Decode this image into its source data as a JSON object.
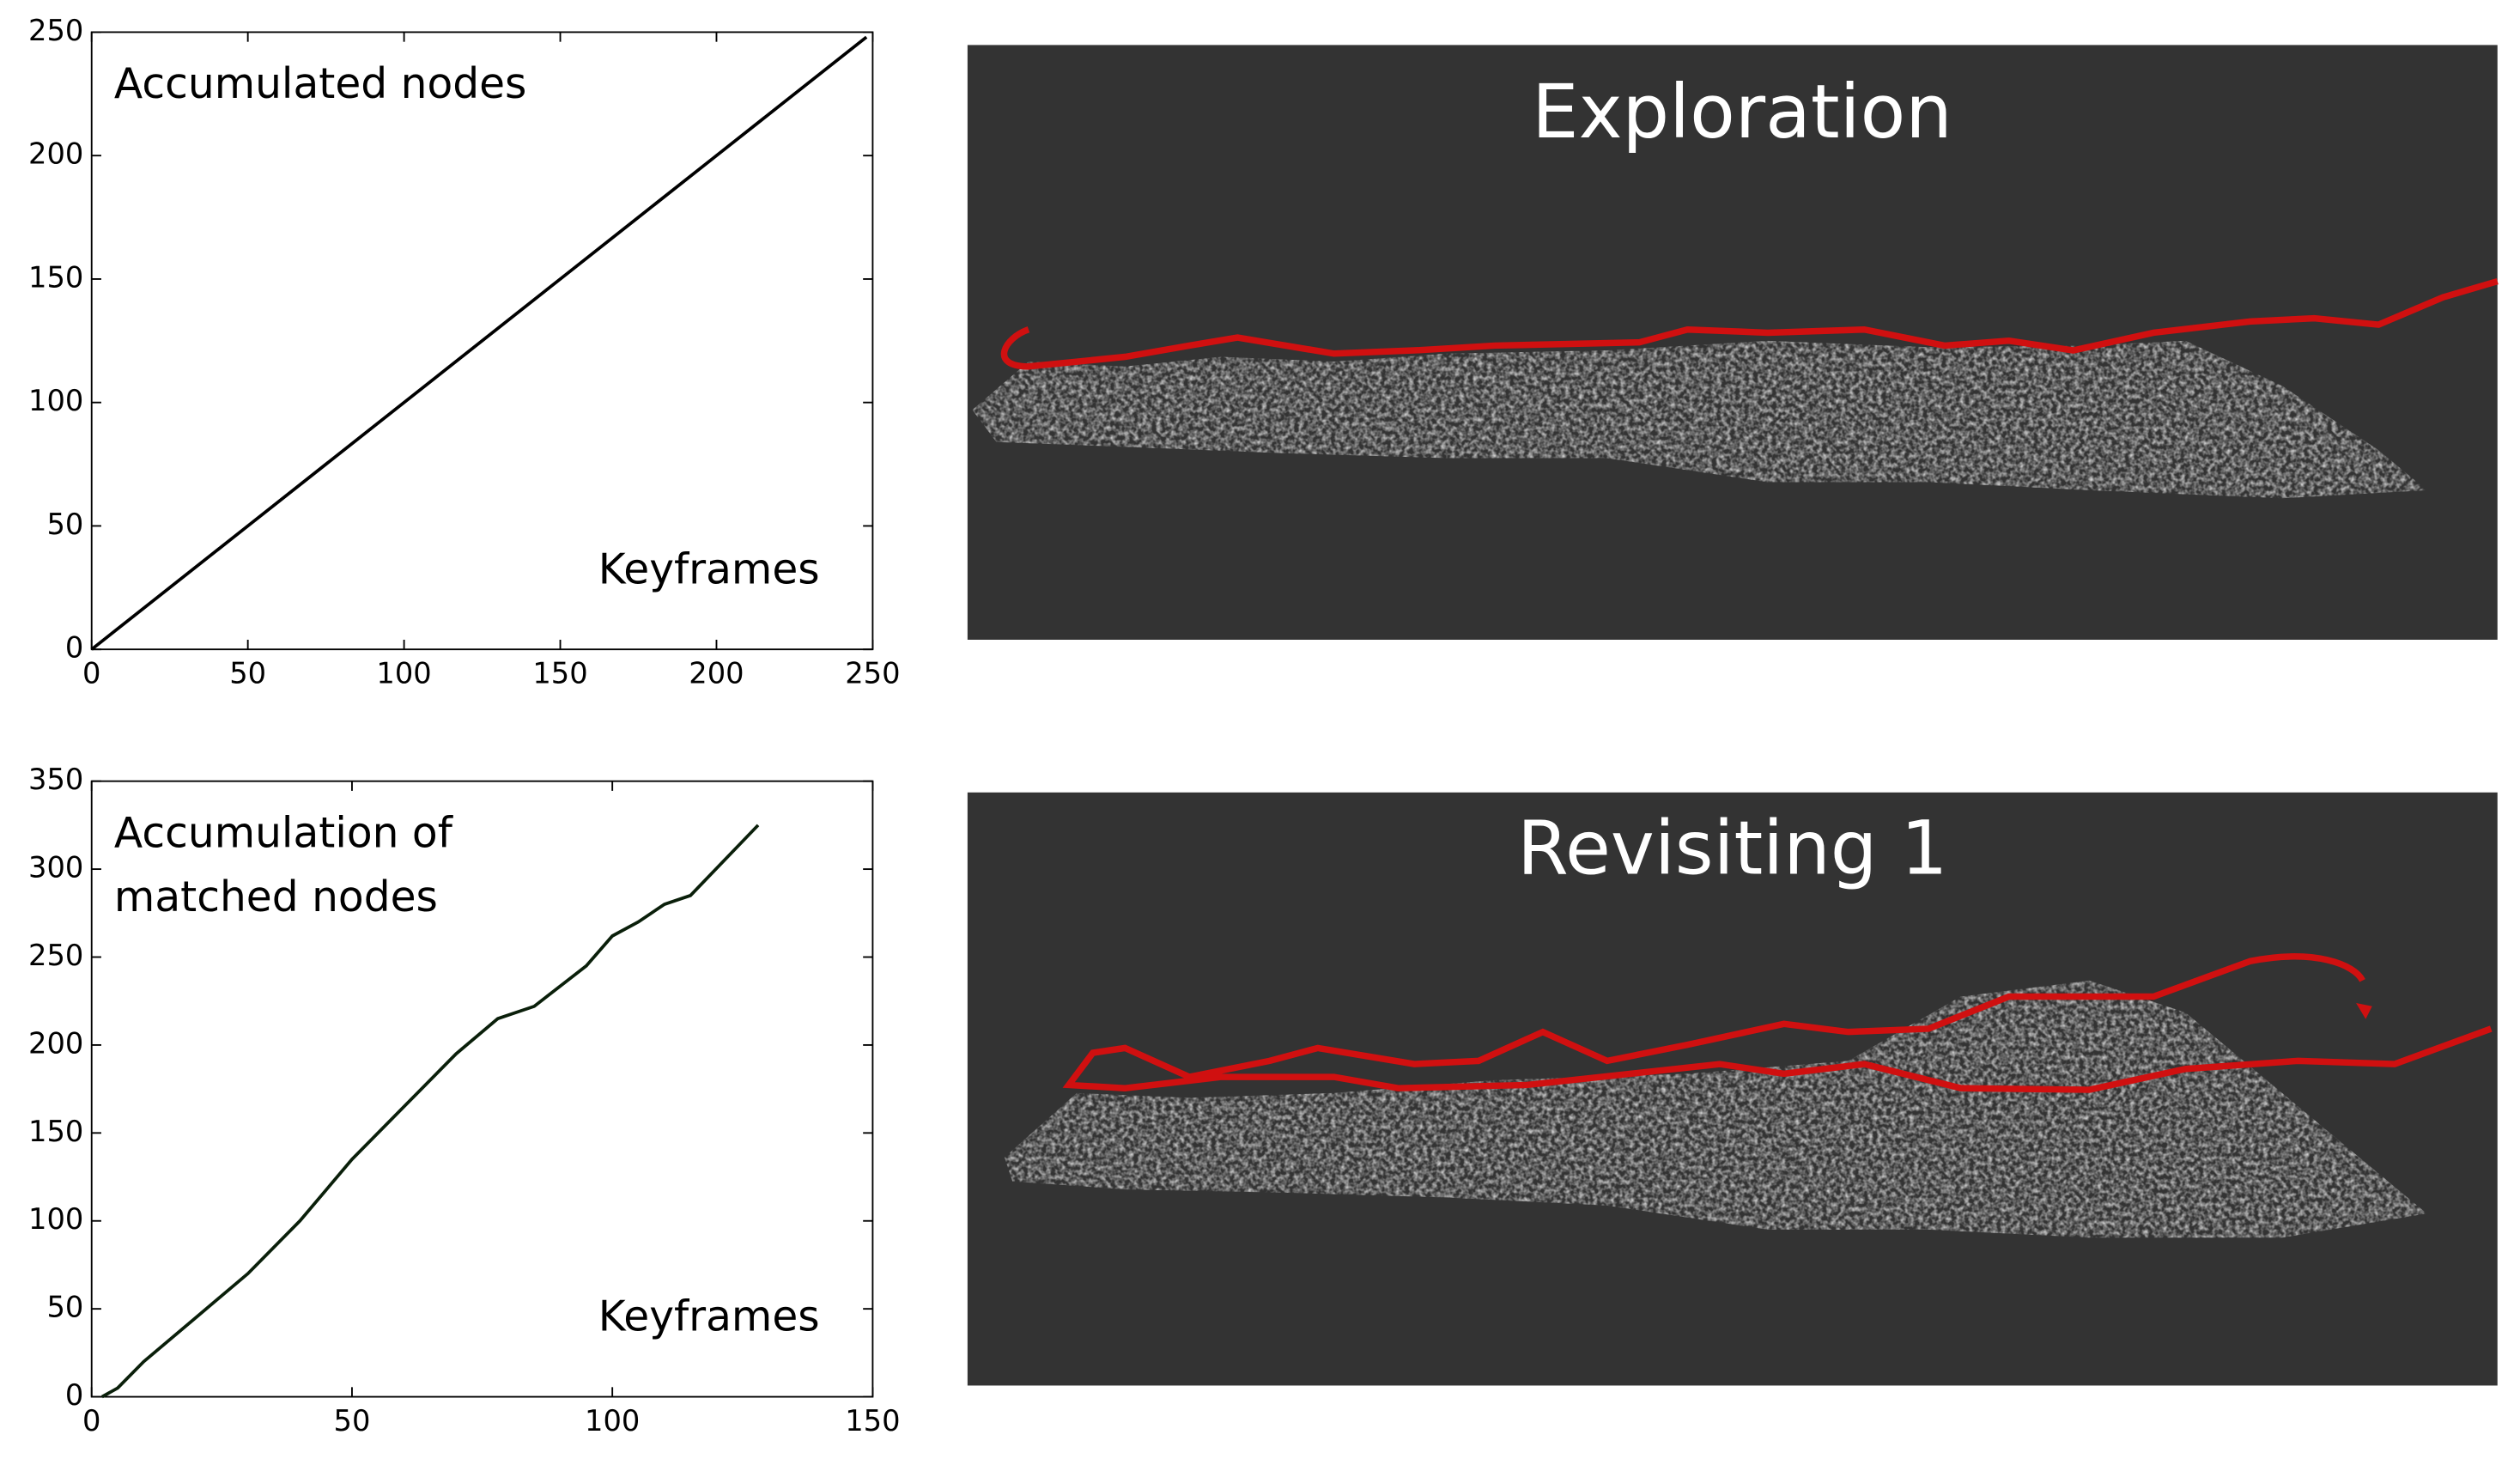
{
  "chart_data": [
    {
      "type": "line",
      "title": [
        "Accumulated nodes"
      ],
      "x_label": "Keyframes",
      "x": [
        0,
        50,
        100,
        150,
        200,
        248
      ],
      "series": [
        {
          "color": "#000000",
          "values": [
            0,
            50,
            100,
            150,
            200,
            248
          ]
        }
      ],
      "xlim": [
        0,
        250
      ],
      "ylim": [
        0,
        250
      ],
      "xticks": [
        0,
        50,
        100,
        150,
        200,
        250
      ],
      "yticks": [
        0,
        50,
        100,
        150,
        200,
        250
      ]
    },
    {
      "type": "line",
      "title": [
        "Accumulation of",
        "matched nodes"
      ],
      "x_label": "Keyframes",
      "x": [
        2,
        5,
        10,
        20,
        30,
        40,
        50,
        60,
        70,
        78,
        85,
        95,
        100,
        105,
        110,
        115,
        128
      ],
      "series": [
        {
          "color": "#0a1f0a",
          "values": [
            0,
            5,
            20,
            45,
            70,
            100,
            135,
            165,
            195,
            215,
            222,
            245,
            262,
            270,
            280,
            285,
            325
          ]
        }
      ],
      "xlim": [
        0,
        150
      ],
      "ylim": [
        0,
        350
      ],
      "xticks": [
        0,
        50,
        100,
        150
      ],
      "yticks": [
        0,
        50,
        100,
        150,
        200,
        250,
        300,
        350
      ]
    }
  ],
  "panels": [
    {
      "title": "Exploration"
    },
    {
      "title": "Revisiting 1"
    }
  ]
}
